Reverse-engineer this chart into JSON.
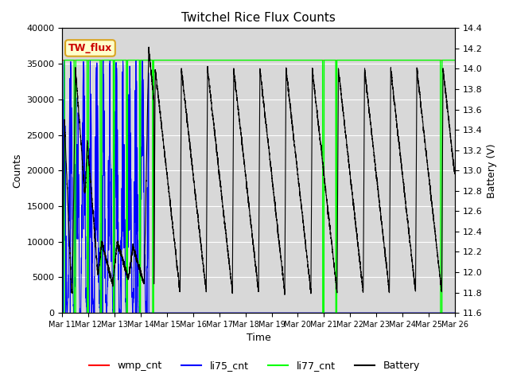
{
  "title": "Twitchel Rice Flux Counts",
  "xlabel": "Time",
  "ylabel_left": "Counts",
  "ylabel_right": "Battery (V)",
  "ylim_left": [
    0,
    40000
  ],
  "ylim_right": [
    11.6,
    14.4
  ],
  "x_tick_labels": [
    "Mar 11",
    "Mar 12",
    "Mar 13",
    "Mar 14",
    "Mar 15",
    "Mar 16",
    "Mar 17",
    "Mar 18",
    "Mar 19",
    "Mar 20",
    "Mar 21",
    "Mar 22",
    "Mar 23",
    "Mar 24",
    "Mar 25",
    "Mar 26"
  ],
  "legend_labels": [
    "wmp_cnt",
    "li75_cnt",
    "li77_cnt",
    "Battery"
  ],
  "legend_colors": [
    "red",
    "blue",
    "#00ff00",
    "black"
  ],
  "annotation_text": "TW_flux",
  "annotation_color": "#cc0000",
  "annotation_bg": "#ffffcc",
  "plot_bg": "#d8d8d8",
  "grid_color": "white",
  "yticks_left": [
    0,
    5000,
    10000,
    15000,
    20000,
    25000,
    30000,
    35000,
    40000
  ],
  "yticks_right": [
    11.6,
    11.8,
    12.0,
    12.2,
    12.4,
    12.6,
    12.8,
    13.0,
    13.2,
    13.4,
    13.6,
    13.8,
    14.0,
    14.2,
    14.4
  ]
}
